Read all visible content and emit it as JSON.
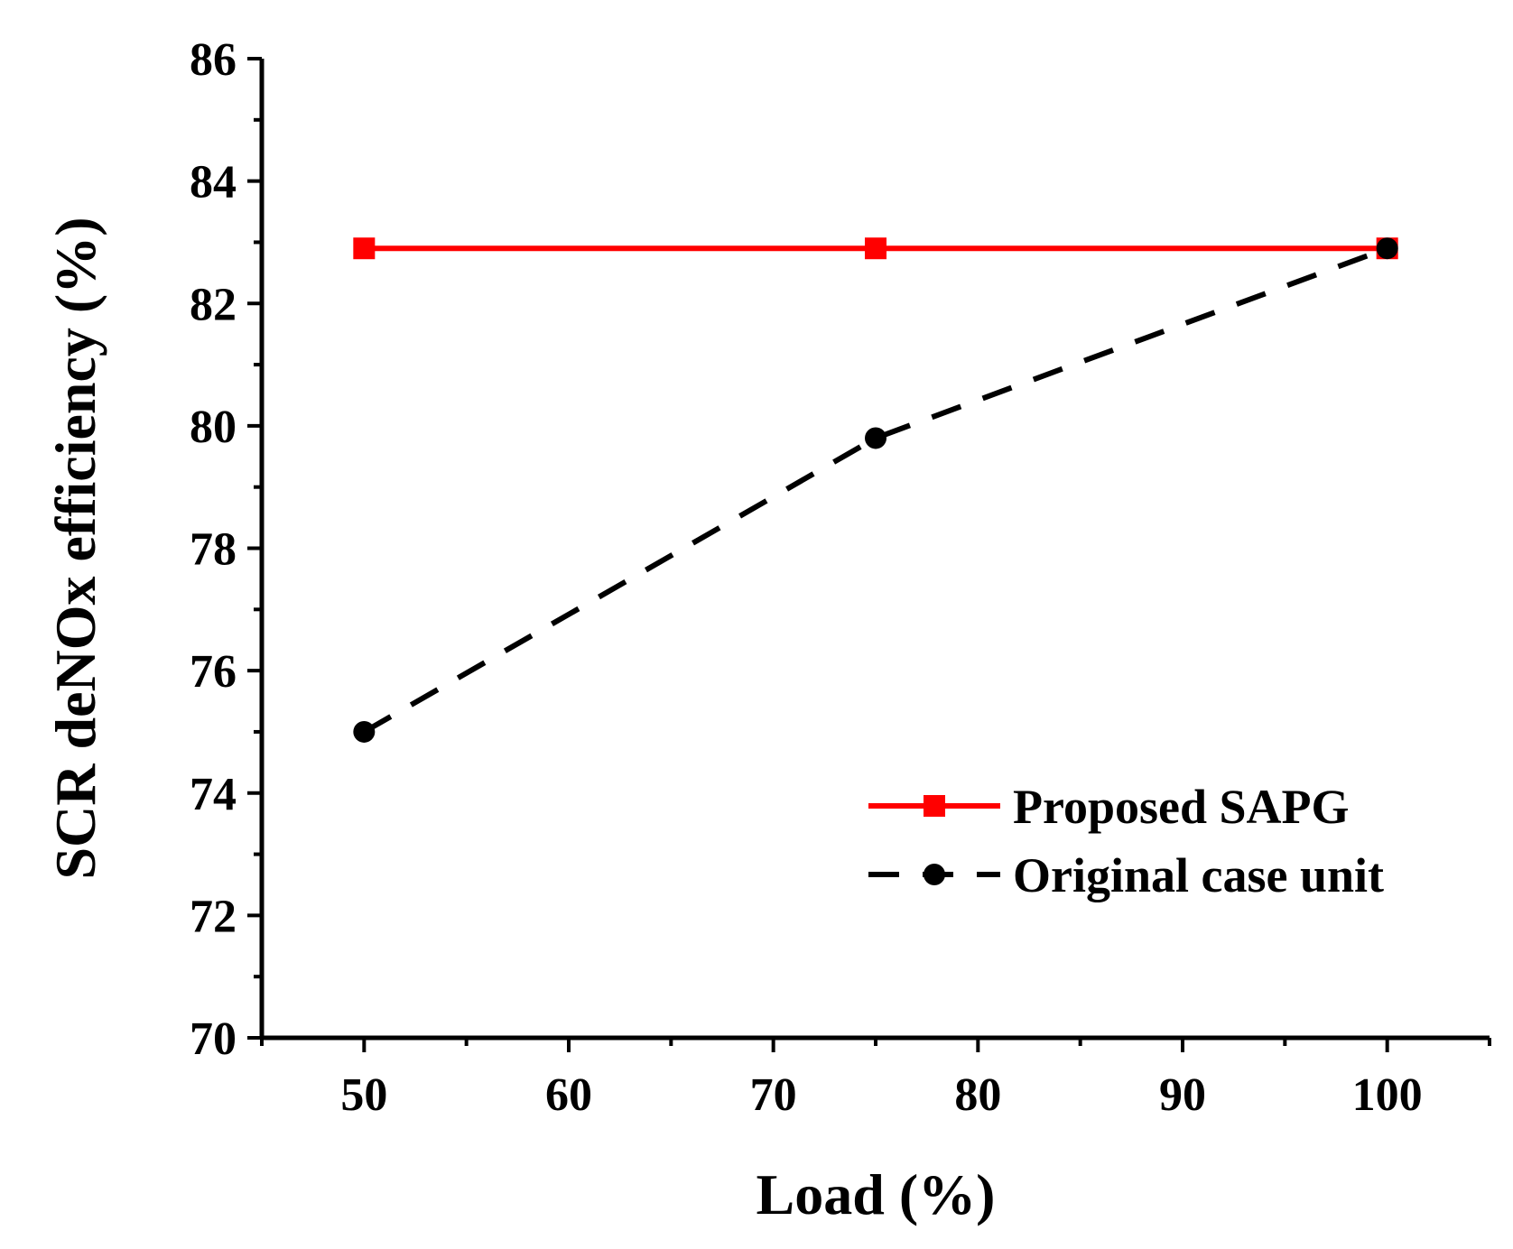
{
  "chart_data": {
    "type": "line",
    "title": "",
    "xlabel": "Load (%)",
    "ylabel": "SCR deNOx efficiency (%)",
    "xlim": [
      45,
      105
    ],
    "ylim": [
      70,
      86
    ],
    "xticks": [
      50,
      60,
      70,
      80,
      90,
      100
    ],
    "yticks": [
      70,
      72,
      74,
      76,
      78,
      80,
      82,
      84,
      86
    ],
    "grid": false,
    "legend_position": "bottom-right",
    "series": [
      {
        "name": "Proposed SAPG",
        "x": [
          50,
          75,
          100
        ],
        "values": [
          82.9,
          82.9,
          82.9
        ],
        "color": "#ff0000",
        "line_style": "solid",
        "marker": "square"
      },
      {
        "name": "Original case unit",
        "x": [
          50,
          75,
          100
        ],
        "values": [
          75.0,
          79.8,
          82.9
        ],
        "color": "#000000",
        "line_style": "dashed",
        "marker": "circle"
      }
    ]
  }
}
